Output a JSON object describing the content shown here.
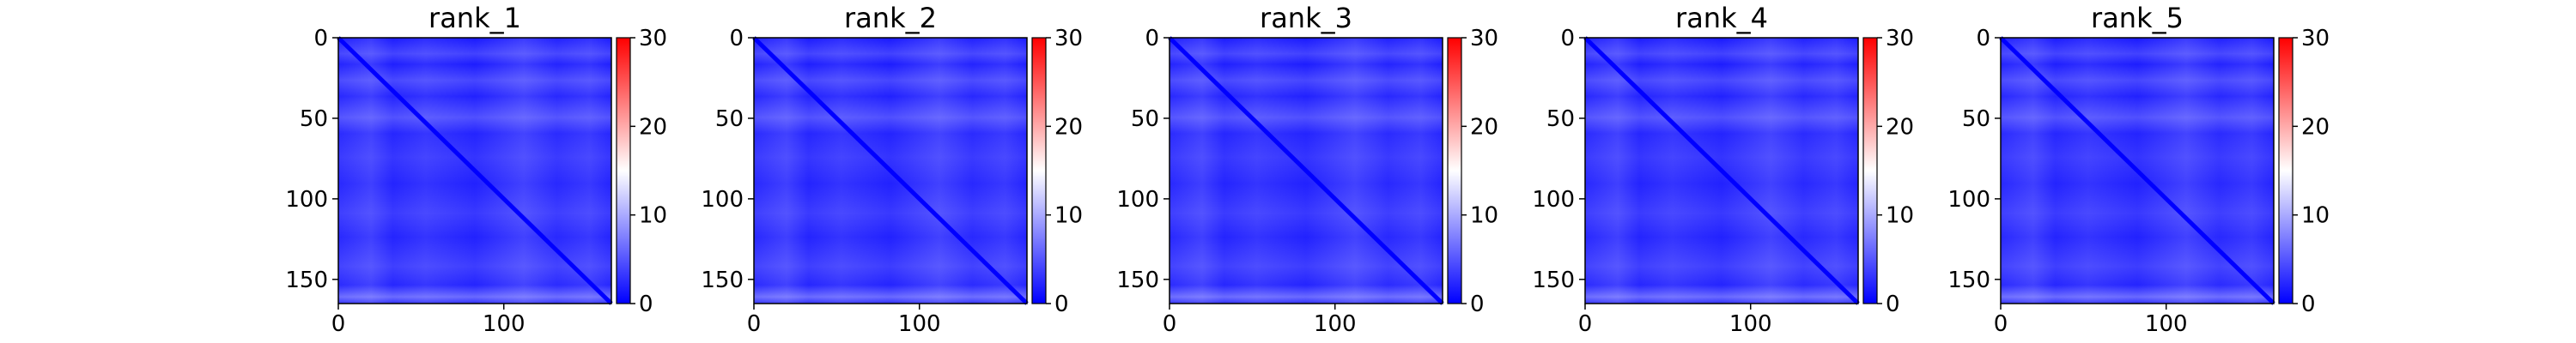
{
  "chart_data": [
    {
      "type": "heatmap",
      "title": "rank_1",
      "xticks": [
        0,
        100
      ],
      "yticks": [
        0,
        50,
        100,
        150
      ],
      "xlim": [
        0,
        165
      ],
      "ylim": [
        165,
        0
      ],
      "colorbar": {
        "colormap": "bwr",
        "range": [
          0,
          30
        ],
        "ticks": [
          0,
          10,
          20,
          30
        ]
      },
      "grid": false
    },
    {
      "type": "heatmap",
      "title": "rank_2",
      "xticks": [
        0,
        100
      ],
      "yticks": [
        0,
        50,
        100,
        150
      ],
      "xlim": [
        0,
        165
      ],
      "ylim": [
        165,
        0
      ],
      "colorbar": {
        "colormap": "bwr",
        "range": [
          0,
          30
        ],
        "ticks": [
          0,
          10,
          20,
          30
        ]
      },
      "grid": false
    },
    {
      "type": "heatmap",
      "title": "rank_3",
      "xticks": [
        0,
        100
      ],
      "yticks": [
        0,
        50,
        100,
        150
      ],
      "xlim": [
        0,
        165
      ],
      "ylim": [
        165,
        0
      ],
      "colorbar": {
        "colormap": "bwr",
        "range": [
          0,
          30
        ],
        "ticks": [
          0,
          10,
          20,
          30
        ]
      },
      "grid": false
    },
    {
      "type": "heatmap",
      "title": "rank_4",
      "xticks": [
        0,
        100
      ],
      "yticks": [
        0,
        50,
        100,
        150
      ],
      "xlim": [
        0,
        165
      ],
      "ylim": [
        165,
        0
      ],
      "colorbar": {
        "colormap": "bwr",
        "range": [
          0,
          30
        ],
        "ticks": [
          0,
          10,
          20,
          30
        ]
      },
      "grid": false
    },
    {
      "type": "heatmap",
      "title": "rank_5",
      "xticks": [
        0,
        100
      ],
      "yticks": [
        0,
        50,
        100,
        150
      ],
      "xlim": [
        0,
        165
      ],
      "ylim": [
        165,
        0
      ],
      "colorbar": {
        "colormap": "bwr",
        "range": [
          0,
          30
        ],
        "ticks": [
          0,
          10,
          20,
          30
        ]
      },
      "grid": false
    }
  ]
}
